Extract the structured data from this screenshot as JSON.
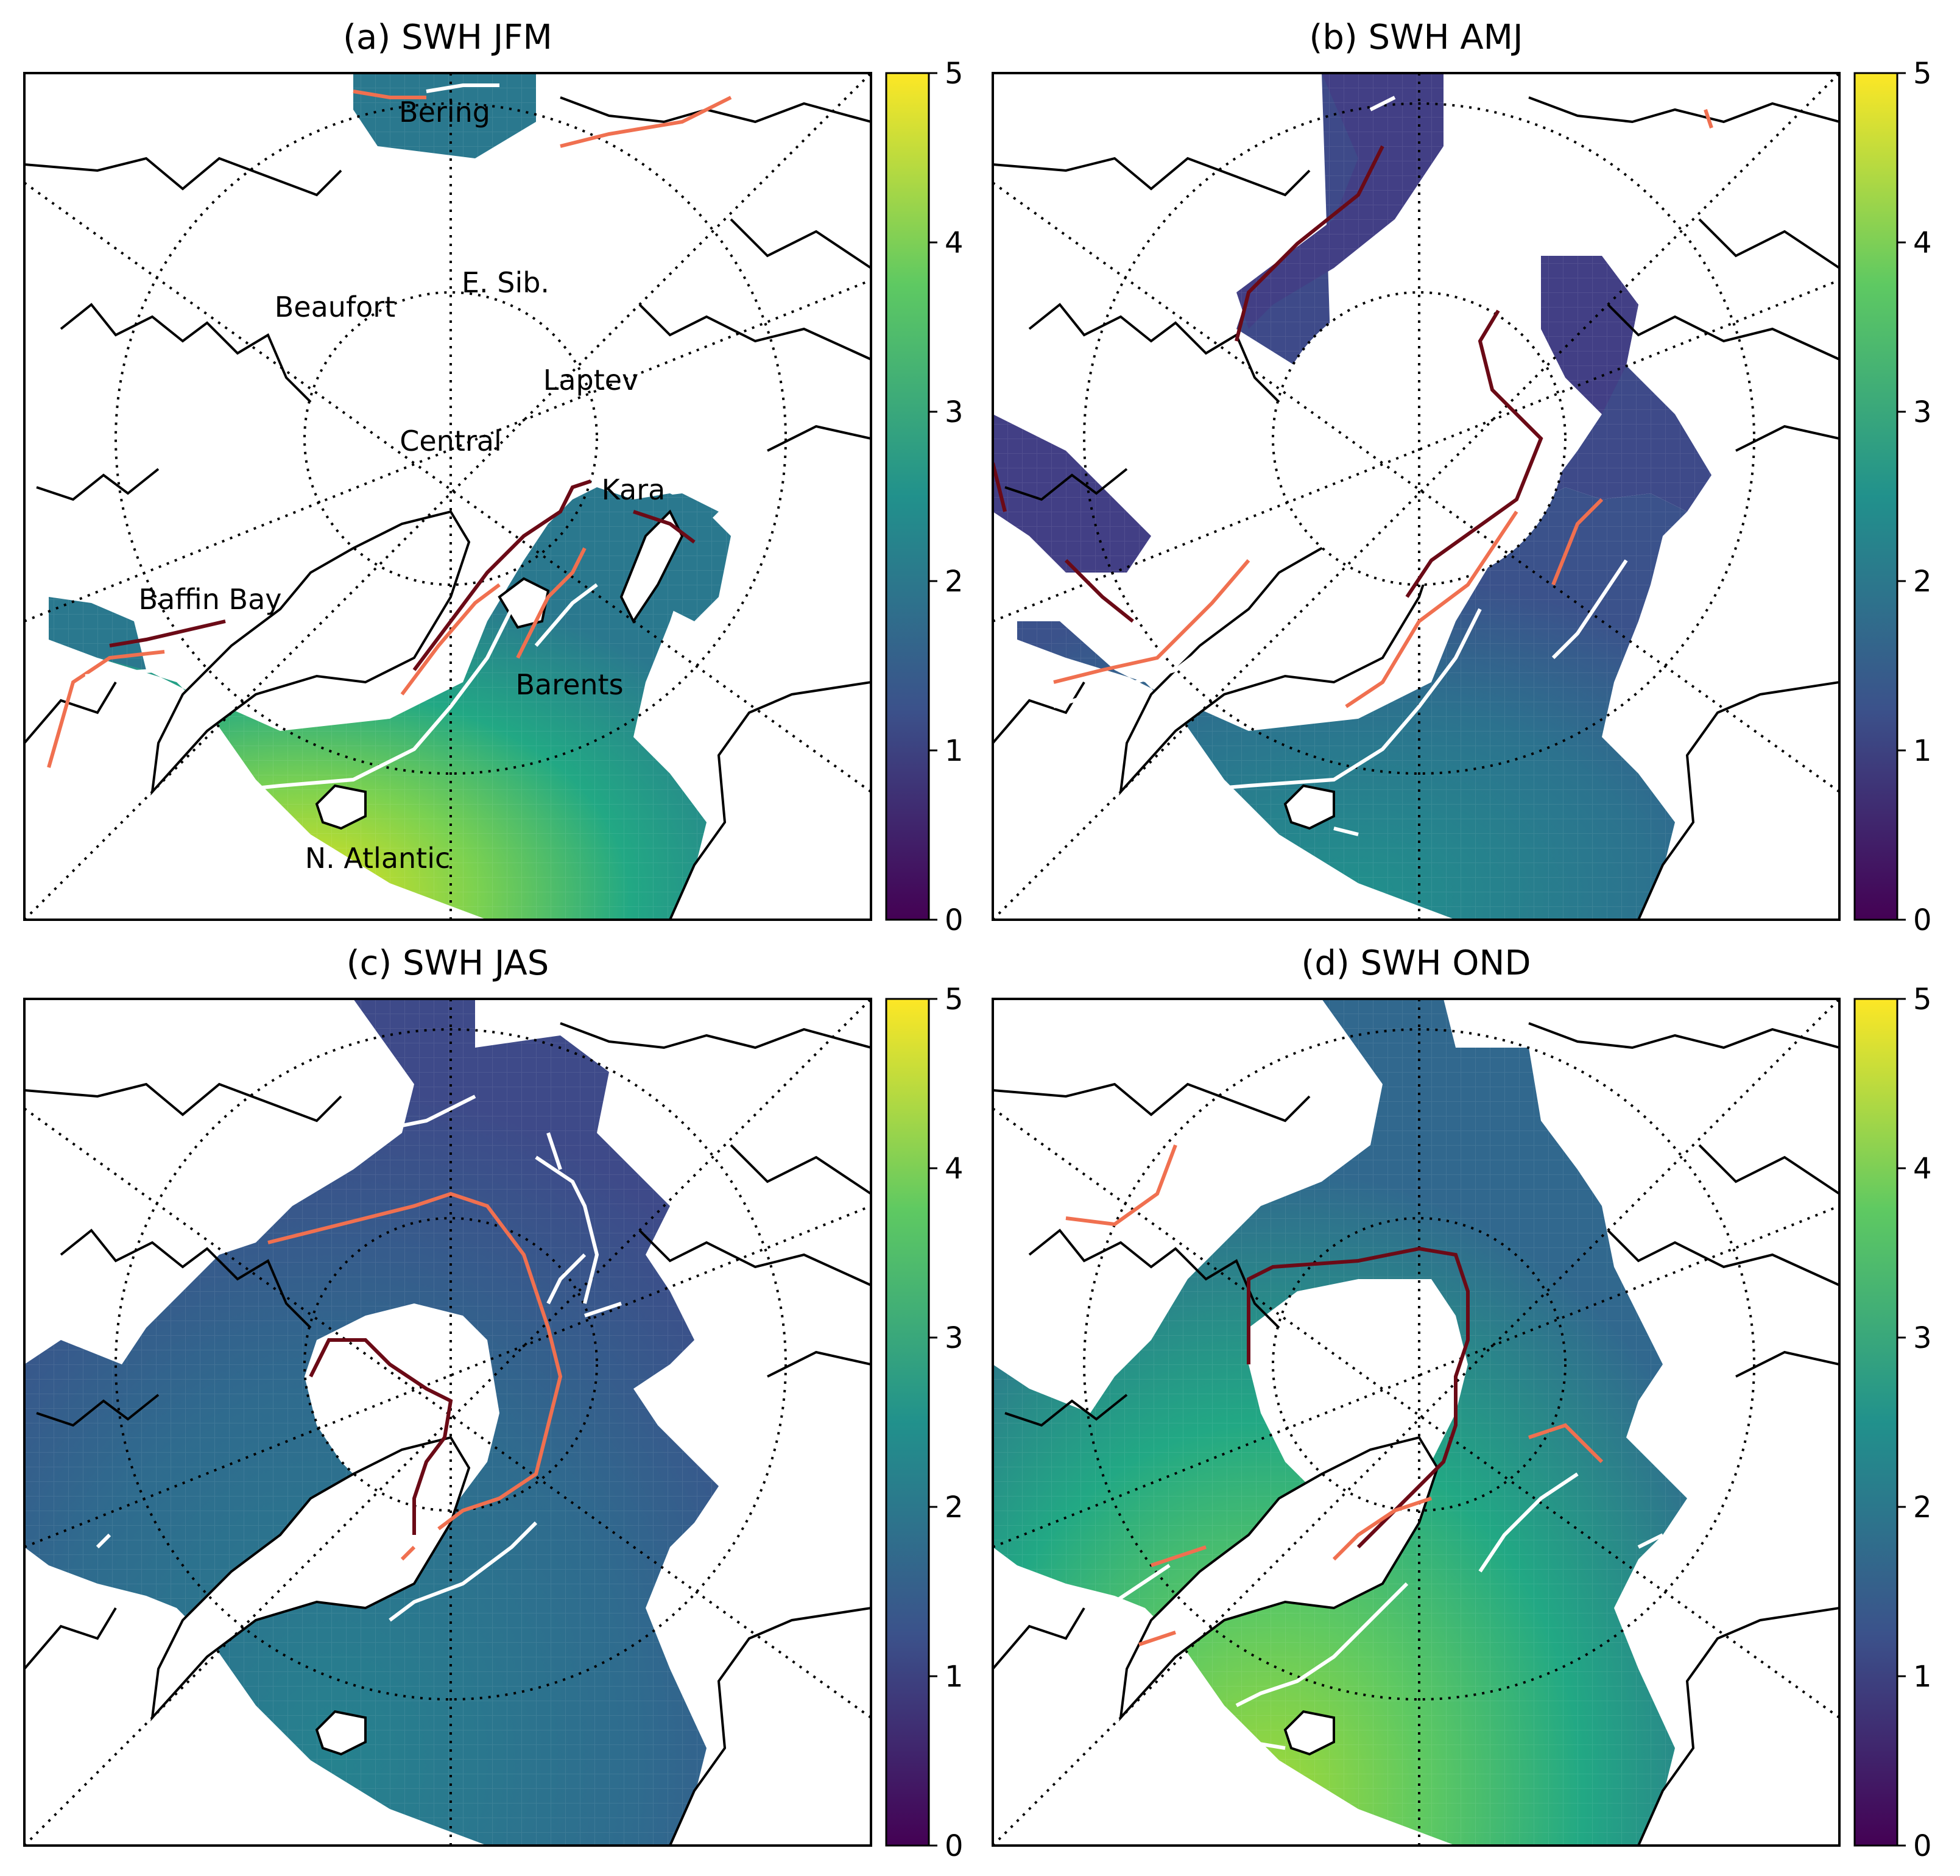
{
  "figure": {
    "panels": [
      {
        "id": "a",
        "title": "(a) SWH JFM",
        "season": "JFM",
        "max_level": 4.7
      },
      {
        "id": "b",
        "title": "(b) SWH AMJ",
        "season": "AMJ",
        "max_level": 2.4
      },
      {
        "id": "c",
        "title": "(c) SWH JAS",
        "season": "JAS",
        "max_level": 2.2
      },
      {
        "id": "d",
        "title": "(d) SWH OND",
        "season": "OND",
        "max_level": 4.2
      }
    ],
    "colorbar": {
      "ticks": [
        "0",
        "1",
        "2",
        "3",
        "4",
        "5"
      ],
      "range": [
        0,
        5
      ],
      "colormap": "viridis",
      "colors": [
        "#440154",
        "#3b528b",
        "#21918c",
        "#5ec962",
        "#fde725"
      ]
    },
    "regions": {
      "bering": "Bering",
      "beaufort": "Beaufort",
      "esib": "E. Sib.",
      "laptev": "Laptev",
      "central": "Central",
      "kara": "Kara",
      "baffin": "Baffin Bay",
      "barents": "Barents",
      "natlantic": "N. Atlantic"
    },
    "contour_colors": {
      "dark": "#6b0a16",
      "orange": "#f07050",
      "white": "#ffffff"
    }
  }
}
